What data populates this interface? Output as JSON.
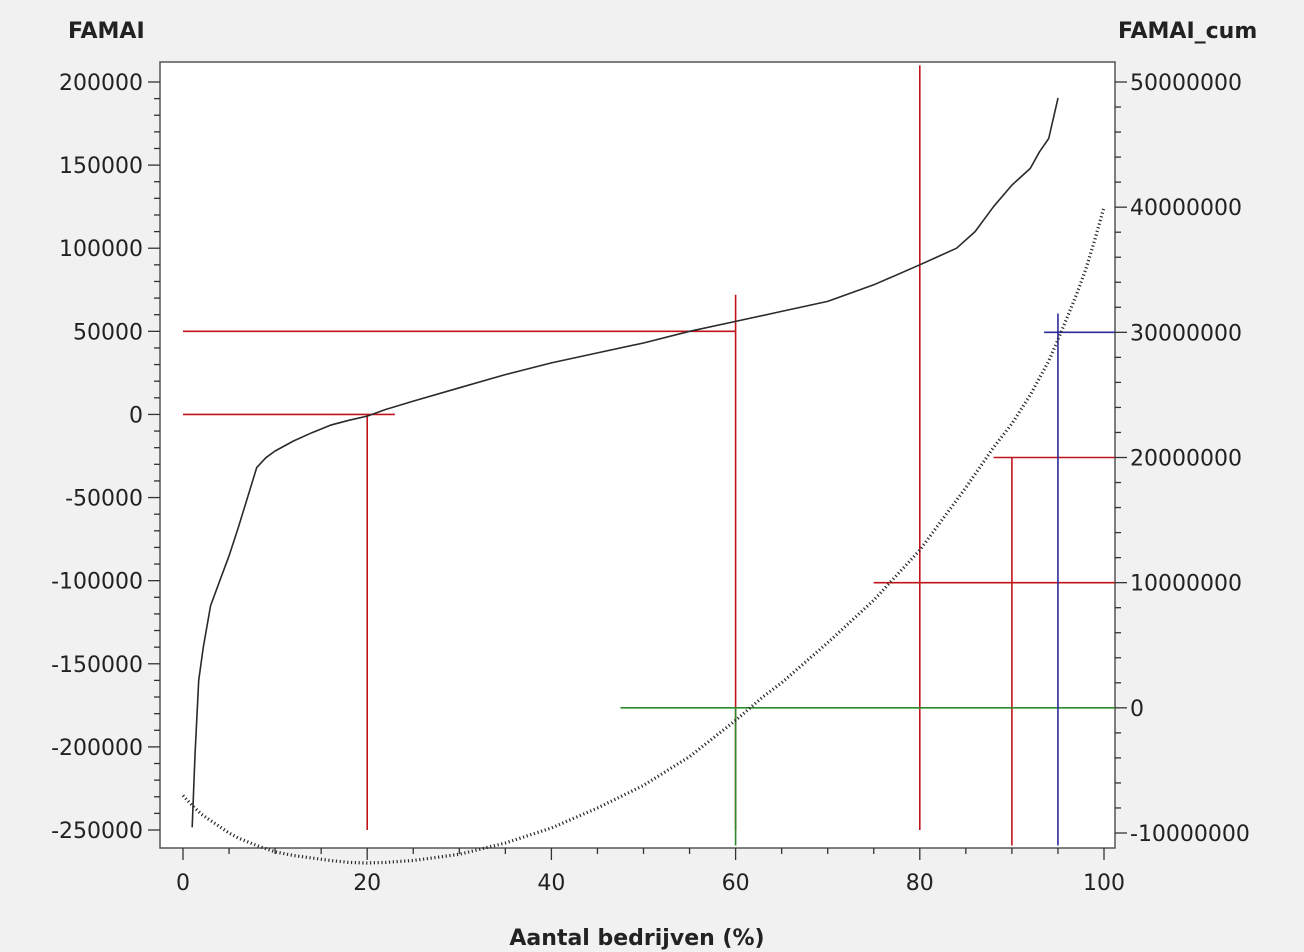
{
  "chart_data": {
    "type": "line",
    "title": "",
    "xlabel": "Aantal bedrijven (%)",
    "ylabel_left": "FAMAI",
    "ylabel_right": "FAMAI_cum",
    "xlim": [
      0,
      100
    ],
    "ylim_left": [
      -250000,
      200000
    ],
    "ylim_right": [
      -10000000,
      50000000
    ],
    "x_ticks": [
      0,
      20,
      40,
      60,
      80,
      100
    ],
    "y_left_ticks": [
      200000,
      150000,
      100000,
      50000,
      0,
      -50000,
      -100000,
      -150000,
      -200000,
      -250000
    ],
    "y_left_tick_labels": [
      "200000",
      "150000",
      "100000",
      "50000",
      "0",
      "-50000",
      "-100000",
      "-150000",
      "-200000",
      "-250000"
    ],
    "y_right_ticks": [
      50000000,
      40000000,
      30000000,
      20000000,
      10000000,
      0,
      -10000000
    ],
    "y_right_tick_labels": [
      "50000000",
      "40000000",
      "30000000",
      "20000000",
      "10000000",
      "0",
      "-10000000"
    ],
    "grid": false,
    "series": [
      {
        "axis": "left",
        "style": "solid",
        "color": "#2a2a2a",
        "x": [
          1,
          1.3,
          1.7,
          2.2,
          3,
          4,
          5,
          6,
          7,
          8,
          9,
          10,
          12,
          14,
          16,
          18,
          20,
          22,
          25,
          30,
          35,
          40,
          45,
          50,
          55,
          60,
          65,
          70,
          75,
          80,
          82,
          84,
          86,
          88,
          90,
          92,
          93,
          94,
          95
        ],
        "y": [
          -248000,
          -205000,
          -160000,
          -140000,
          -115000,
          -100000,
          -85000,
          -68000,
          -50000,
          -32000,
          -26000,
          -22000,
          -16000,
          -11000,
          -6500,
          -3500,
          -1000,
          3000,
          8000,
          16000,
          24000,
          31000,
          37000,
          43000,
          50000,
          56000,
          62000,
          68000,
          78000,
          90000,
          95000,
          100000,
          110000,
          125000,
          138000,
          148000,
          158000,
          166000,
          190000
        ]
      },
      {
        "axis": "right",
        "style": "dotted",
        "color": "#2a2a2a",
        "x": [
          0,
          1,
          2,
          3,
          4,
          5,
          6,
          8,
          10,
          12,
          14,
          16,
          18,
          20,
          22,
          25,
          28,
          30,
          35,
          40,
          45,
          50,
          55,
          60,
          63,
          65,
          70,
          75,
          80,
          85,
          88,
          90,
          92,
          94,
          95,
          96,
          97,
          98,
          99,
          100
        ],
        "y": [
          -7000000,
          -7800000,
          -8500000,
          -9000000,
          -9500000,
          -10000000,
          -10400000,
          -11000000,
          -11500000,
          -11800000,
          -12000000,
          -12200000,
          -12350000,
          -12400000,
          -12350000,
          -12200000,
          -11900000,
          -11700000,
          -10800000,
          -9600000,
          -8000000,
          -6200000,
          -3900000,
          -1000000,
          900000,
          2000000,
          5200000,
          8600000,
          12600000,
          17600000,
          20800000,
          22700000,
          25000000,
          27700000,
          29400000,
          31200000,
          33000000,
          35000000,
          37400000,
          40000000
        ]
      }
    ],
    "reference_lines": [
      {
        "color": "#c0141a",
        "orient": "h",
        "axis": "left",
        "value": 0,
        "from": 0,
        "to": 23
      },
      {
        "color": "#c0141a",
        "orient": "v",
        "axis": "left",
        "value": 20,
        "from": -250000,
        "to": 0
      },
      {
        "color": "#c0141a",
        "orient": "h",
        "axis": "left",
        "value": 50000,
        "from": 0,
        "to": 60
      },
      {
        "color": "#c0141a",
        "orient": "v",
        "axis": "left",
        "value": 60,
        "from": -250000,
        "to": 72000
      },
      {
        "color": "#c0141a",
        "orient": "v",
        "axis": "left",
        "value": 80,
        "from": -250000,
        "to": 210000
      },
      {
        "color": "#c0141a",
        "orient": "h",
        "axis": "right",
        "value": 10000000,
        "from": 75,
        "to": 101.5
      },
      {
        "color": "#c0141a",
        "orient": "h",
        "axis": "right",
        "value": 20000000,
        "from": 88,
        "to": 101.5
      },
      {
        "color": "#c0141a",
        "orient": "v",
        "axis": "right",
        "value": 90,
        "from": -11000000,
        "to": 20000000
      },
      {
        "color": "#2c8a2c",
        "orient": "h",
        "axis": "right",
        "value": 0,
        "from": 47.5,
        "to": 101.5
      },
      {
        "color": "#2c8a2c",
        "orient": "v",
        "axis": "right",
        "value": 60,
        "from": -11000000,
        "to": 0
      },
      {
        "color": "#2a2a9c",
        "orient": "h",
        "axis": "right",
        "value": 30000000,
        "from": 93.5,
        "to": 101.5
      },
      {
        "color": "#2a2a9c",
        "orient": "v",
        "axis": "right",
        "value": 95,
        "from": -11000000,
        "to": 31500000
      }
    ]
  }
}
